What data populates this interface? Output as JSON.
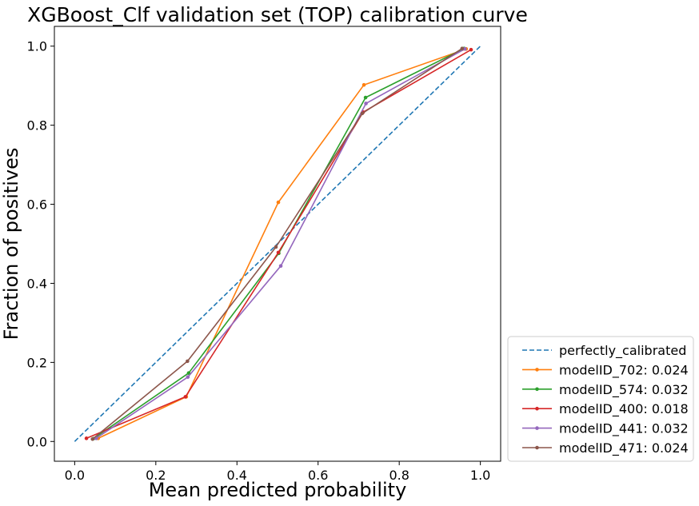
{
  "chart_data": {
    "type": "line",
    "title": "XGBoost_Clf validation set (TOP) calibration curve",
    "xlabel": "Mean predicted probability",
    "ylabel": "Fraction of positives",
    "xlim": [
      -0.05,
      1.05
    ],
    "ylim": [
      -0.05,
      1.05
    ],
    "xticks": [
      "0.0",
      "0.2",
      "0.4",
      "0.6",
      "0.8",
      "1.0"
    ],
    "yticks": [
      "0.0",
      "0.2",
      "0.4",
      "0.6",
      "0.8",
      "1.0"
    ],
    "xtick_values": [
      0.0,
      0.2,
      0.4,
      0.6,
      0.8,
      1.0
    ],
    "ytick_values": [
      0.0,
      0.2,
      0.4,
      0.6,
      0.8,
      1.0
    ],
    "grid": false,
    "legend_position": "outside lower-right",
    "reference": {
      "name": "perfectly_calibrated",
      "color": "#1f77b4",
      "style": "dashed",
      "x": [
        0.0,
        1.0
      ],
      "y": [
        0.0,
        1.0
      ]
    },
    "series": [
      {
        "name": "modelID_702: 0.024",
        "color": "#ff7f0e",
        "x": [
          0.058,
          0.275,
          0.502,
          0.713,
          0.965
        ],
        "y": [
          0.008,
          0.113,
          0.605,
          0.902,
          0.993
        ]
      },
      {
        "name": "modelID_574: 0.032",
        "color": "#2ca02c",
        "x": [
          0.046,
          0.281,
          0.503,
          0.717,
          0.96
        ],
        "y": [
          0.007,
          0.173,
          0.476,
          0.87,
          0.994
        ]
      },
      {
        "name": "modelID_400: 0.018",
        "color": "#d62728",
        "x": [
          0.029,
          0.273,
          0.502,
          0.711,
          0.977
        ],
        "y": [
          0.008,
          0.113,
          0.478,
          0.833,
          0.991
        ]
      },
      {
        "name": "modelID_441: 0.032",
        "color": "#9467bd",
        "x": [
          0.053,
          0.279,
          0.508,
          0.718,
          0.962
        ],
        "y": [
          0.008,
          0.163,
          0.444,
          0.855,
          0.993
        ]
      },
      {
        "name": "modelID_471: 0.024",
        "color": "#8c564b",
        "x": [
          0.044,
          0.278,
          0.496,
          0.709,
          0.955
        ],
        "y": [
          0.006,
          0.203,
          0.492,
          0.83,
          0.994
        ]
      }
    ]
  }
}
